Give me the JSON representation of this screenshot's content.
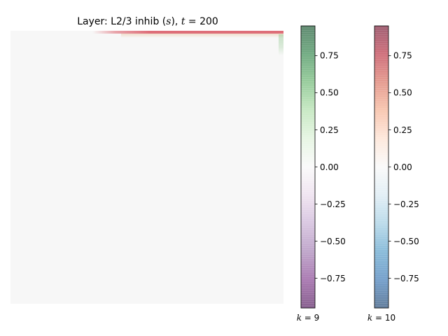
{
  "chart_data": {
    "type": "heatmap",
    "title": {
      "prefix": "Layer: L2/3 inhib (",
      "var": "s",
      "mid": "), ",
      "tvar": "t",
      "eq": " = 200"
    },
    "xlabel": "",
    "ylabel": "",
    "grid": false,
    "axis_visible": false,
    "background_value": 0.0,
    "background_color": "#f7f7f7",
    "features": [
      {
        "name": "top-edge band",
        "k": 10,
        "x_range": [
          0.3,
          1.0
        ],
        "y": 0.0,
        "peak_value": 0.75,
        "color": "#d6404e"
      },
      {
        "name": "right-edge short band",
        "k": 9,
        "x": 1.0,
        "y_range": [
          0.0,
          0.09
        ],
        "peak_value": 0.4,
        "color": "#7fbf7b"
      }
    ],
    "colorbars": [
      {
        "label_var": "k",
        "label_eq": " = 9",
        "range": [
          -0.95,
          0.95
        ],
        "ticks": [
          -0.75,
          -0.5,
          -0.25,
          0.0,
          0.25,
          0.5,
          0.75
        ],
        "tick_labels": [
          "−0.75",
          "−0.50",
          "−0.25",
          "0.00",
          "0.25",
          "0.50",
          "0.75"
        ],
        "colors": [
          "#40004b",
          "#762a83",
          "#9970ab",
          "#c2a5cf",
          "#e7d4e8",
          "#f7f7f7",
          "#d9f0d3",
          "#a6dba0",
          "#5aae61",
          "#1b7837",
          "#00441b"
        ]
      },
      {
        "label_var": "k",
        "label_eq": " = 10",
        "range": [
          -0.95,
          0.95
        ],
        "ticks": [
          -0.75,
          -0.5,
          -0.25,
          0.0,
          0.25,
          0.5,
          0.75
        ],
        "tick_labels": [
          "−0.75",
          "−0.50",
          "−0.25",
          "0.00",
          "0.25",
          "0.50",
          "0.75"
        ],
        "colors": [
          "#053061",
          "#2166ac",
          "#4393c3",
          "#92c5de",
          "#d1e5f0",
          "#f7f7f7",
          "#fddbc7",
          "#f4a582",
          "#d6604d",
          "#b2182b",
          "#67001f"
        ]
      }
    ]
  }
}
